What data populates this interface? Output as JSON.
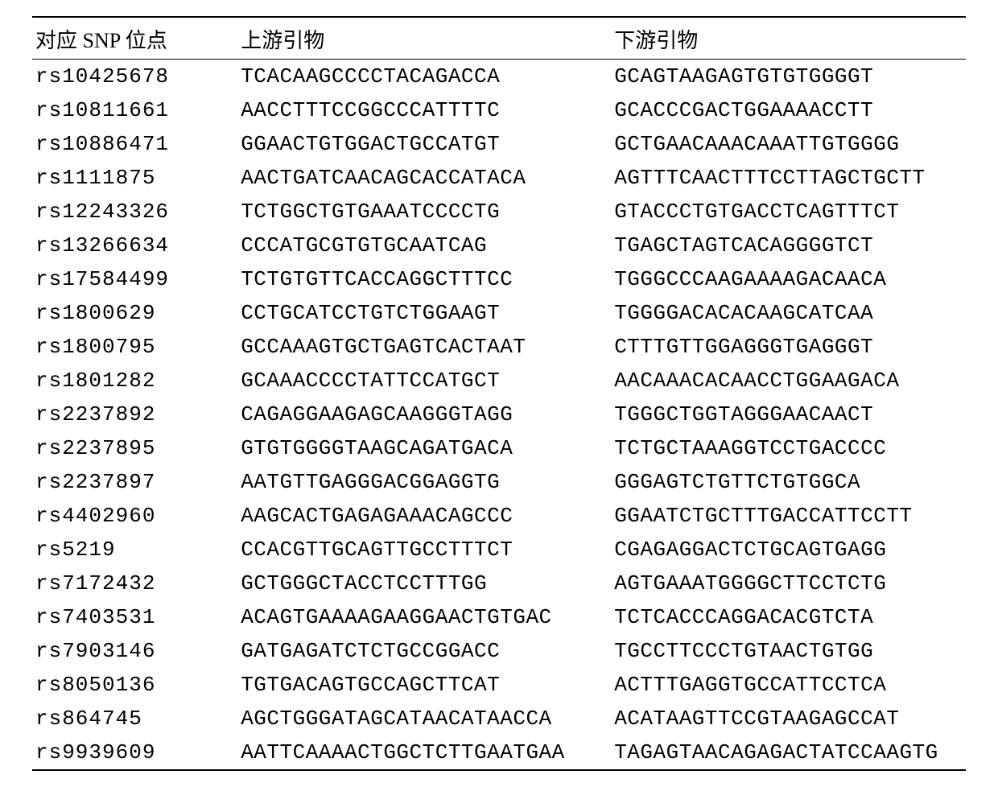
{
  "table": {
    "type": "table",
    "background_color": "#ffffff",
    "text_color": "#000000",
    "border_color": "#000000",
    "header_fontsize": 26,
    "cell_fontsize": 26,
    "columns": [
      {
        "label": "对应 SNP 位点",
        "width_pct": 22,
        "align": "left"
      },
      {
        "label": "上游引物",
        "width_pct": 40,
        "align": "left"
      },
      {
        "label": "下游引物",
        "width_pct": 38,
        "align": "left"
      }
    ],
    "rows": [
      {
        "snp": "rs10425678",
        "forward": "TCACAAGCCCCTACAGACCA",
        "reverse": "GCAGTAAGAGTGTGTGGGGT"
      },
      {
        "snp": "rs10811661",
        "forward": "AACCTTTCCGGCCCATTTTC",
        "reverse": "GCACCCGACTGGAAAACCTT"
      },
      {
        "snp": "rs10886471",
        "forward": "GGAACTGTGGACTGCCATGT",
        "reverse": "GCTGAACAAACAAATTGTGGGG"
      },
      {
        "snp": "rs1111875",
        "forward": "AACTGATCAACAGCACCATACA",
        "reverse": "AGTTTCAACTTTCCTTAGCTGCTT"
      },
      {
        "snp": "rs12243326",
        "forward": "TCTGGCTGTGAAATCCCCTG",
        "reverse": "GTACCCTGTGACCTCAGTTTCT"
      },
      {
        "snp": "rs13266634",
        "forward": "CCCATGCGTGTGCAATCAG",
        "reverse": "TGAGCTAGTCACAGGGGTCT"
      },
      {
        "snp": "rs17584499",
        "forward": "TCTGTGTTCACCAGGCTTTCC",
        "reverse": "TGGGCCCAAGAAAAGACAACA"
      },
      {
        "snp": "rs1800629",
        "forward": "CCTGCATCCTGTCTGGAAGT",
        "reverse": "TGGGGACACACAAGCATCAA"
      },
      {
        "snp": "rs1800795",
        "forward": "GCCAAAGTGCTGAGTCACTAAT",
        "reverse": "CTTTGTTGGAGGGTGAGGGT"
      },
      {
        "snp": "rs1801282",
        "forward": "GCAAACCCCTATTCCATGCT",
        "reverse": "AACAAACACAACCTGGAAGACA"
      },
      {
        "snp": "rs2237892",
        "forward": "CAGAGGAAGAGCAAGGGTAGG",
        "reverse": "TGGGCTGGTAGGGAACAACT"
      },
      {
        "snp": "rs2237895",
        "forward": "GTGTGGGGTAAGCAGATGACA",
        "reverse": "TCTGCTAAAGGTCCTGACCCC"
      },
      {
        "snp": "rs2237897",
        "forward": "AATGTTGAGGGACGGAGGTG",
        "reverse": "GGGAGTCTGTTCTGTGGCA"
      },
      {
        "snp": "rs4402960",
        "forward": "AAGCACTGAGAGAAACAGCCC",
        "reverse": "GGAATCTGCTTTGACCATTCCTT"
      },
      {
        "snp": "rs5219",
        "forward": "CCACGTTGCAGTTGCCTTTCT",
        "reverse": "CGAGAGGACTCTGCAGTGAGG"
      },
      {
        "snp": "rs7172432",
        "forward": "GCTGGGCTACCTCCTTTGG",
        "reverse": "AGTGAAATGGGGCTTCCTCTG"
      },
      {
        "snp": "rs7403531",
        "forward": "ACAGTGAAAAGAAGGAACTGTGAC",
        "reverse": "TCTCACCCAGGACACGTCTA"
      },
      {
        "snp": "rs7903146",
        "forward": "GATGAGATCTCTGCCGGACC",
        "reverse": "TGCCTTCCCTGTAACTGTGG"
      },
      {
        "snp": "rs8050136",
        "forward": "TGTGACAGTGCCAGCTTCAT",
        "reverse": "ACTTTGAGGTGCCATTCCTCA"
      },
      {
        "snp": "rs864745",
        "forward": "AGCTGGGATAGCATAACATAACCA",
        "reverse": "ACATAAGTTCCGTAAGAGCCAT"
      },
      {
        "snp": "rs9939609",
        "forward": "AATTCAAAACTGGCTCTTGAATGAA",
        "reverse": "TAGAGTAACAGAGACTATCCAAGTG"
      }
    ]
  }
}
